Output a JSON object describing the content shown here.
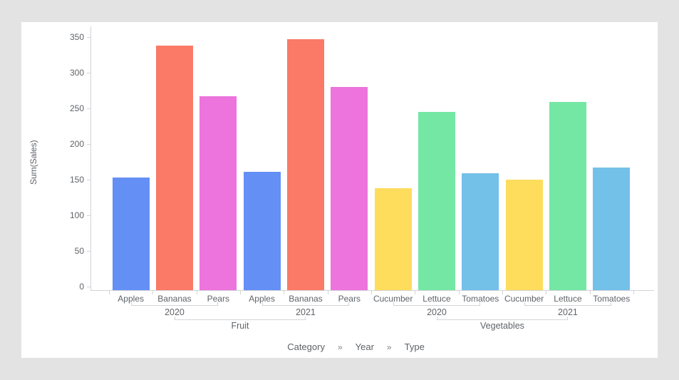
{
  "page": {
    "background_color": "#e3e3e3",
    "card_color": "#ffffff"
  },
  "chart_data": {
    "type": "bar",
    "title": "",
    "ylabel": "Sum(Sales)",
    "xlabel": "Category » Year » Type",
    "x_hierarchy_levels": [
      "Category",
      "Year",
      "Type"
    ],
    "ylim": [
      0,
      350
    ],
    "ytick_interval": 50,
    "yticks": [
      0,
      50,
      100,
      150,
      200,
      250,
      300,
      350
    ],
    "grid": false,
    "legend": "none",
    "series_colors": {
      "Apples": "#6490f5",
      "Bananas": "#fa7a67",
      "Pears": "#ec74dc",
      "Cucumber": "#fedd5d",
      "Lettuce": "#75e7a4",
      "Tomatoes": "#73c0e9"
    },
    "groups": [
      {
        "category": "Fruit",
        "years": [
          {
            "year": "2020",
            "bars": [
              {
                "type": "Apples",
                "value": 153,
                "color": "#6490f5"
              },
              {
                "type": "Bananas",
                "value": 338,
                "color": "#fa7a67"
              },
              {
                "type": "Pears",
                "value": 267,
                "color": "#ec74dc"
              }
            ]
          },
          {
            "year": "2021",
            "bars": [
              {
                "type": "Apples",
                "value": 161,
                "color": "#6490f5"
              },
              {
                "type": "Bananas",
                "value": 347,
                "color": "#fa7a67"
              },
              {
                "type": "Pears",
                "value": 280,
                "color": "#ec74dc"
              }
            ]
          }
        ]
      },
      {
        "category": "Vegetables",
        "years": [
          {
            "year": "2020",
            "bars": [
              {
                "type": "Cucumber",
                "value": 138,
                "color": "#fedd5d"
              },
              {
                "type": "Lettuce",
                "value": 245,
                "color": "#75e7a4"
              },
              {
                "type": "Tomatoes",
                "value": 159,
                "color": "#73c0e9"
              }
            ]
          },
          {
            "year": "2021",
            "bars": [
              {
                "type": "Cucumber",
                "value": 150,
                "color": "#fedd5d"
              },
              {
                "type": "Lettuce",
                "value": 259,
                "color": "#75e7a4"
              },
              {
                "type": "Tomatoes",
                "value": 167,
                "color": "#73c0e9"
              }
            ]
          }
        ]
      }
    ]
  },
  "footer": {
    "items": [
      "Category",
      "Year",
      "Type"
    ],
    "separator": "»"
  },
  "colors": {
    "axis_line": "#d4d4d8",
    "tick_text": "#5f6368",
    "label_text": "#5f6368",
    "separator_text": "#80868b"
  }
}
